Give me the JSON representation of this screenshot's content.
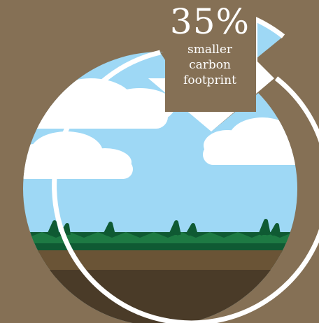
{
  "stat": {
    "percent": "35%",
    "line1": "smaller",
    "line2": "carbon",
    "line3": "footprint"
  },
  "colors": {
    "background": "#857055",
    "sky": "#9ed8f5",
    "cloud": "#ffffff",
    "grass": "#0f5a33",
    "grass_light": "#1d7a43",
    "soil_top": "#6a5436",
    "soil_bottom": "#4a3b28",
    "rim": "#ffffff"
  },
  "chart_data": {
    "type": "pie",
    "slices": [
      {
        "value": 35,
        "label": "35% smaller carbon footprint",
        "exploded": true
      },
      {
        "value": 65,
        "label": ""
      }
    ]
  }
}
